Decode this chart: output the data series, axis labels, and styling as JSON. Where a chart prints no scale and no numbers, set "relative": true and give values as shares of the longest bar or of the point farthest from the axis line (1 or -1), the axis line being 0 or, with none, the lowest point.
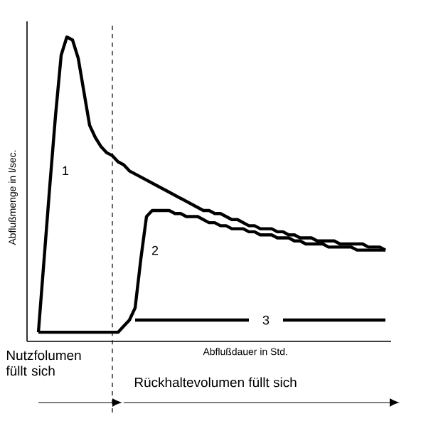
{
  "chart_data": {
    "type": "line",
    "relative": true,
    "xlabel": "Abflußdauer in Std.",
    "ylabel": "Abflußmenge in l/sec.",
    "marker": "none",
    "line_style": "solid",
    "categories": [
      null,
      null,
      null,
      null,
      null,
      null,
      null,
      null,
      null,
      null,
      null,
      null,
      null,
      null,
      null,
      null,
      null,
      null,
      null,
      null,
      null,
      null,
      null,
      null,
      null,
      null,
      null,
      null,
      null,
      null,
      null,
      null,
      null,
      null,
      null,
      null,
      null,
      null,
      null,
      null,
      null,
      null,
      null,
      null,
      null,
      null,
      null,
      null,
      null,
      null,
      null,
      null,
      null,
      null,
      null,
      null,
      null,
      null,
      null,
      null,
      null,
      null
    ],
    "series": [
      {
        "name": "1",
        "color": "#000000",
        "values": [
          0.03,
          0.27,
          0.51,
          0.74,
          0.94,
          1.0,
          0.99,
          0.93,
          0.82,
          0.71,
          0.67,
          0.64,
          0.62,
          0.61,
          0.59,
          0.58,
          0.56,
          0.55,
          0.54,
          0.53,
          0.52,
          0.51,
          0.5,
          0.49,
          0.48,
          0.47,
          0.46,
          0.45,
          0.44,
          0.43,
          0.43,
          0.42,
          0.42,
          0.41,
          0.4,
          0.4,
          0.39,
          0.38,
          0.38,
          0.37,
          0.37,
          0.37,
          0.36,
          0.36,
          0.35,
          0.35,
          0.34,
          0.34,
          0.34,
          0.33,
          0.33,
          0.33,
          0.33,
          0.32,
          0.32,
          0.32,
          0.32,
          0.32,
          0.31,
          0.31,
          0.31,
          0.3
        ]
      },
      {
        "name": "2",
        "color": "#000000",
        "values": [
          0.03,
          0.03,
          0.03,
          0.03,
          0.03,
          0.03,
          0.03,
          0.03,
          0.03,
          0.03,
          0.03,
          0.03,
          0.03,
          0.03,
          0.03,
          0.05,
          0.07,
          0.11,
          0.27,
          0.41,
          0.43,
          0.43,
          0.43,
          0.43,
          0.42,
          0.42,
          0.41,
          0.41,
          0.41,
          0.4,
          0.39,
          0.39,
          0.38,
          0.38,
          0.37,
          0.37,
          0.37,
          0.36,
          0.36,
          0.35,
          0.35,
          0.35,
          0.34,
          0.34,
          0.34,
          0.33,
          0.33,
          0.32,
          0.32,
          0.32,
          0.32,
          0.31,
          0.31,
          0.31,
          0.31,
          0.31,
          0.3,
          0.3,
          0.3,
          0.3,
          0.3,
          0.3
        ]
      },
      {
        "name": "3",
        "color": "#000000",
        "values": [
          null,
          null,
          null,
          null,
          null,
          null,
          null,
          null,
          null,
          null,
          null,
          null,
          null,
          null,
          null,
          null,
          null,
          0.07,
          0.07,
          0.07,
          0.07,
          0.07,
          0.07,
          0.07,
          0.07,
          0.07,
          0.07,
          0.07,
          0.07,
          0.07,
          0.07,
          0.07,
          0.07,
          0.07,
          0.07,
          0.07,
          0.07,
          0.07,
          null,
          null,
          null,
          null,
          null,
          0.07,
          0.07,
          0.07,
          0.07,
          0.07,
          0.07,
          0.07,
          0.07,
          0.07,
          0.07,
          0.07,
          0.07,
          0.07,
          0.07,
          0.07,
          0.07,
          0.07,
          0.07,
          0.07
        ]
      }
    ],
    "annotations": [
      "Nutzfolumen füllt sich",
      "Rückhaltevolumen füllt sich"
    ]
  }
}
